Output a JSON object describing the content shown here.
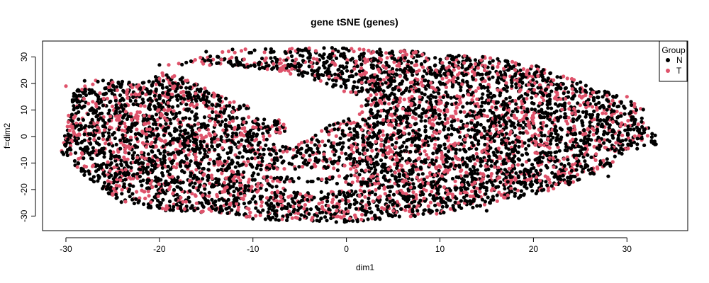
{
  "chart_data": {
    "type": "scatter",
    "title": "gene tSNE (genes)",
    "xlabel": "dim1",
    "ylabel": "f=dim2",
    "xlim": [
      -32.5,
      36.5
    ],
    "ylim": [
      -35.5,
      36
    ],
    "xticks": [
      -30,
      -20,
      -10,
      0,
      10,
      20,
      30
    ],
    "yticks": [
      -30,
      -20,
      -10,
      0,
      10,
      20,
      30
    ],
    "grid": false,
    "legend": {
      "title": "Group",
      "placement": "top-right",
      "entries": [
        {
          "label": "N",
          "color": "#000000"
        },
        {
          "label": "T",
          "color": "#df536b"
        }
      ]
    },
    "series": [
      {
        "name": "N",
        "color": "#000000"
      },
      {
        "name": "T",
        "color": "#df536b"
      }
    ],
    "point_cloud": {
      "x_extent": [
        -30,
        33
      ],
      "y_extent": [
        -33,
        34
      ],
      "approx_points_per_series": 3000,
      "sample_points": [
        {
          "series": "N",
          "x": -30,
          "y": -3
        },
        {
          "series": "N",
          "x": -28,
          "y": 21
        },
        {
          "series": "N",
          "x": -20,
          "y": 27
        },
        {
          "series": "N",
          "x": -15,
          "y": 32
        },
        {
          "series": "N",
          "x": 0,
          "y": 33
        },
        {
          "series": "N",
          "x": 12,
          "y": 28
        },
        {
          "series": "N",
          "x": 25,
          "y": 18
        },
        {
          "series": "N",
          "x": 31,
          "y": 10
        },
        {
          "series": "N",
          "x": 33,
          "y": -3
        },
        {
          "series": "N",
          "x": 28,
          "y": -15
        },
        {
          "series": "N",
          "x": 15,
          "y": -28
        },
        {
          "series": "N",
          "x": 0,
          "y": -32
        },
        {
          "series": "N",
          "x": -10,
          "y": -31
        },
        {
          "series": "N",
          "x": -20,
          "y": -27
        },
        {
          "series": "N",
          "x": -27,
          "y": -17
        },
        {
          "series": "T",
          "x": -30,
          "y": 19
        },
        {
          "series": "T",
          "x": -25,
          "y": -22
        },
        {
          "series": "T",
          "x": -19,
          "y": 27
        },
        {
          "series": "T",
          "x": 5,
          "y": -28
        },
        {
          "series": "T",
          "x": 30,
          "y": 15
        },
        {
          "series": "T",
          "x": 20,
          "y": 5
        },
        {
          "series": "T",
          "x": -15,
          "y": 0
        }
      ]
    }
  }
}
